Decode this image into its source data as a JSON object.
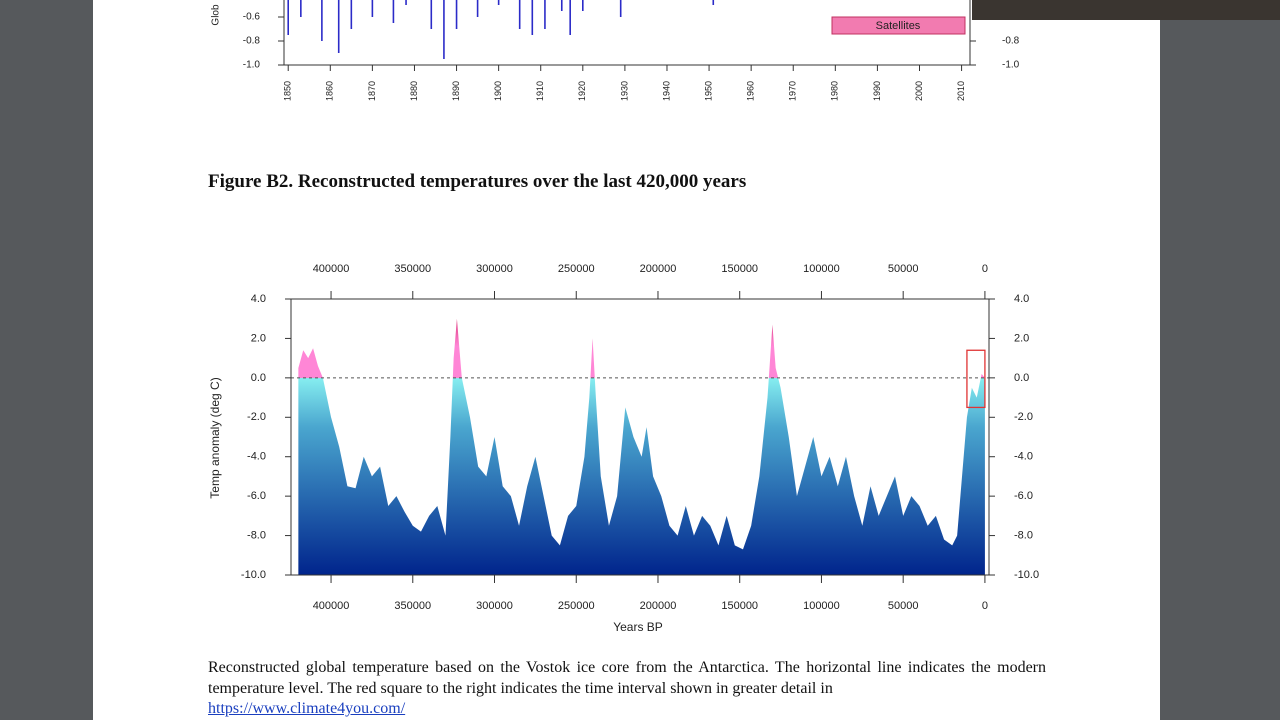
{
  "top_chart": {
    "ylabel": "Glob",
    "x": [
      1850,
      1853,
      1858,
      1862,
      1865,
      1870,
      1875,
      1878,
      1884,
      1887,
      1890,
      1895,
      1900,
      1905,
      1908,
      1911,
      1915,
      1917,
      1920,
      1929,
      1951
    ],
    "values": [
      -0.75,
      -0.6,
      -0.8,
      -0.9,
      -0.7,
      -0.6,
      -0.65,
      -0.5,
      -0.7,
      -0.95,
      -0.7,
      -0.6,
      -0.5,
      -0.7,
      -0.75,
      -0.7,
      -0.55,
      -0.75,
      -0.55,
      -0.6,
      -0.5
    ],
    "color": "#2b2bc8",
    "xlim": [
      1849,
      2012
    ],
    "ylim": [
      -1.0,
      0
    ],
    "xticks": [
      1850,
      1860,
      1870,
      1880,
      1890,
      1900,
      1910,
      1920,
      1930,
      1940,
      1950,
      1960,
      1970,
      1980,
      1990,
      2000,
      2010
    ],
    "yticks": [
      -0.6,
      -0.8,
      {
        "value": -1,
        "label": "-1.0"
      }
    ],
    "y2ticks": [
      -0.8,
      {
        "value": -1,
        "label": "-1.0"
      }
    ],
    "legend": "Satellites",
    "legend_color": "#f27bb0"
  },
  "figure_title": "Figure B2. Reconstructed temperatures over the last 420,000 years",
  "chart_data": {
    "type": "area",
    "xlabel": "Years BP",
    "ylabel": "Temp anomaly (deg C)",
    "x": [
      420000,
      417000,
      414000,
      411000,
      408000,
      405000,
      400000,
      395000,
      390000,
      385000,
      380000,
      375000,
      370000,
      365000,
      360000,
      355000,
      350000,
      345000,
      340000,
      335000,
      330000,
      327000,
      325000,
      323000,
      320000,
      315000,
      310000,
      305000,
      300000,
      295000,
      290000,
      285000,
      280000,
      275000,
      270000,
      265000,
      260000,
      255000,
      250000,
      245000,
      242000,
      240000,
      238000,
      235000,
      230000,
      225000,
      220000,
      215000,
      210000,
      207000,
      203000,
      198000,
      193000,
      188000,
      183000,
      178000,
      173000,
      168000,
      163000,
      158000,
      153000,
      148000,
      143000,
      138000,
      133000,
      130000,
      128000,
      125000,
      120000,
      115000,
      110000,
      105000,
      100000,
      95000,
      90000,
      85000,
      80000,
      75000,
      70000,
      65000,
      60000,
      55000,
      50000,
      45000,
      40000,
      35000,
      30000,
      25000,
      20000,
      17000,
      14000,
      11000,
      8000,
      5000,
      2000,
      0
    ],
    "values": [
      0.5,
      1.4,
      1.0,
      1.5,
      0.6,
      0,
      -2,
      -3.5,
      -5.5,
      -5.6,
      -4,
      -5,
      -4.5,
      -6.5,
      -6,
      -6.8,
      -7.5,
      -7.8,
      -7,
      -6.5,
      -8,
      -3,
      1,
      3.0,
      0,
      -2,
      -4.5,
      -5,
      -3,
      -5.5,
      -6,
      -7.5,
      -5.5,
      -4,
      -6,
      -8,
      -8.5,
      -7,
      -6.5,
      -4,
      -1,
      2,
      -1,
      -5,
      -7.5,
      -6,
      -1.5,
      -3,
      -4,
      -2.5,
      -5,
      -6,
      -7.5,
      -8,
      -6.5,
      -8,
      -7,
      -7.5,
      -8.5,
      -7,
      -8.5,
      -8.7,
      -7.5,
      -5,
      -1,
      2.7,
      0.5,
      -0.5,
      -3,
      -6,
      -4.5,
      -3,
      -5,
      -4,
      -5.5,
      -4,
      -6,
      -7.5,
      -5.5,
      -7,
      -6,
      -5,
      -7,
      -6,
      -6.5,
      -7.5,
      -7,
      -8.2,
      -8.5,
      -8,
      -5,
      -2,
      -0.5,
      -1,
      0.2,
      0
    ],
    "xlim": [
      424500,
      -2500
    ],
    "ylim": [
      -10,
      4
    ],
    "xticks": [
      400000,
      350000,
      300000,
      250000,
      200000,
      150000,
      100000,
      50000,
      0
    ],
    "yticks": [
      {
        "value": 4,
        "label": "4.0"
      },
      {
        "value": 2,
        "label": "2.0"
      },
      {
        "value": 0,
        "label": "0.0"
      },
      {
        "value": -2,
        "label": "-2.0"
      },
      {
        "value": -4,
        "label": "-4.0"
      },
      {
        "value": -6,
        "label": "-6.0"
      },
      {
        "value": -8,
        "label": "-8.0"
      },
      {
        "value": -10,
        "label": "-10.0"
      }
    ],
    "zero_line": 0,
    "colors": {
      "above_top": "#c4003c",
      "above": "#ff86d6",
      "below_top": "#86eef0",
      "bottom": "#00248c"
    },
    "highlight": {
      "x": [
        11000,
        0
      ],
      "y": [
        -1.5,
        1.4
      ],
      "color": "#e03434"
    }
  },
  "caption": {
    "text": "Reconstructed global temperature based on the Vostok ice core from the Antarctica. The horizontal line indicates the modern temperature level. The red square to the right indicates the time interval shown in greater detail in",
    "link": "https://www.climate4you.com/"
  }
}
